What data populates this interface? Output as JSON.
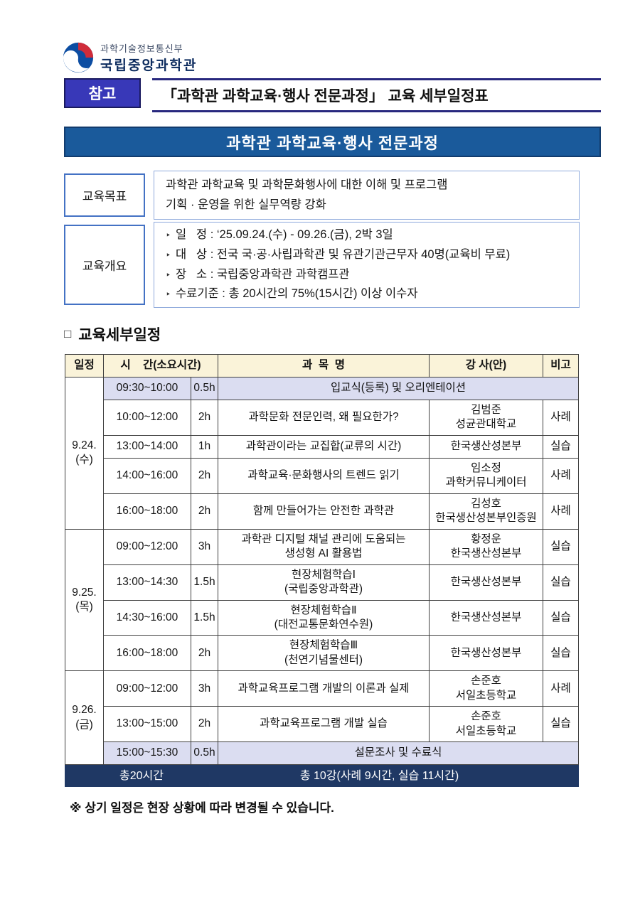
{
  "logo": {
    "ministry": "과학기술정보통신부",
    "org": "국립중앙과학관"
  },
  "header": {
    "badge": "참고",
    "title": "「과학관 과학교육·행사 전문과정」 교육 세부일정표"
  },
  "banner": {
    "title": "과학관 과학교육·행사 전문과정"
  },
  "overview": {
    "goal": {
      "label": "교육목표",
      "lines": [
        "과학관 과학교육 및 과학문화행사에 대한 이해 및 프로그램",
        "기획 · 운영을 위한 실무역량 강화"
      ]
    },
    "outline": {
      "label": "교육개요",
      "bullet": "‣",
      "items": [
        "일   정 : ‘25.09.24.(수) - 09.26.(금), 2박 3일",
        "대   상 : 전국 국·공·사립과학관 및 유관기관근무자 40명(교육비 무료)",
        "장   소 : 국립중앙과학관 과학캠프관",
        "수료기준 : 총 20시간의 75%(15시간) 이상 이수자"
      ]
    }
  },
  "section": {
    "marker": "□",
    "title": "교육세부일정"
  },
  "table": {
    "headers": [
      {
        "label": "일정",
        "colspan": 1
      },
      {
        "label": "시    간(소요시간)",
        "colspan": 2
      },
      {
        "label": "과  목  명",
        "colspan": 1
      },
      {
        "label": "강 사(안)",
        "colspan": 1
      },
      {
        "label": "비고",
        "colspan": 1
      }
    ],
    "days": [
      {
        "day_lines": [
          "9.24.",
          "(수)"
        ],
        "rows": [
          {
            "time": "09:30~10:00",
            "dur": "0.5h",
            "merged": "입교식(등록) 및 오리엔테이션"
          },
          {
            "time": "10:00~12:00",
            "dur": "2h",
            "subject": [
              "과학문화 전문인력, 왜 필요한가?"
            ],
            "lecturer": [
              "김범준",
              "성균관대학교"
            ],
            "note": "사례"
          },
          {
            "time": "13:00~14:00",
            "dur": "1h",
            "subject": [
              "과학관이라는 교집합(교류의 시간)"
            ],
            "lecturer": [
              "한국생산성본부"
            ],
            "note": "실습"
          },
          {
            "time": "14:00~16:00",
            "dur": "2h",
            "subject": [
              "과학교육·문화행사의 트렌드 읽기"
            ],
            "lecturer": [
              "임소정",
              "과학커뮤니케이터"
            ],
            "note": "사례"
          },
          {
            "time": "16:00~18:00",
            "dur": "2h",
            "subject": [
              "함께 만들어가는 안전한 과학관"
            ],
            "lecturer": [
              "김성호",
              "한국생산성본부인증원"
            ],
            "note": "사례"
          }
        ]
      },
      {
        "day_lines": [
          "9.25.",
          "(목)"
        ],
        "rows": [
          {
            "time": "09:00~12:00",
            "dur": "3h",
            "subject": [
              "과학관 디지털 채널 관리에 도움되는",
              "생성형 AI 활용법"
            ],
            "lecturer": [
              "황정운",
              "한국생산성본부"
            ],
            "note": "실습"
          },
          {
            "time": "13:00~14:30",
            "dur": "1.5h",
            "subject": [
              "현장체험학습Ⅰ",
              "(국립중앙과학관)"
            ],
            "lecturer": [
              "한국생산성본부"
            ],
            "note": "실습"
          },
          {
            "time": "14:30~16:00",
            "dur": "1.5h",
            "subject": [
              "현장체험학습Ⅱ",
              "(대전교통문화연수원)"
            ],
            "lecturer": [
              "한국생산성본부"
            ],
            "note": "실습"
          },
          {
            "time": "16:00~18:00",
            "dur": "2h",
            "subject": [
              "현장체험학습Ⅲ",
              "(천연기념물센터)"
            ],
            "lecturer": [
              "한국생산성본부"
            ],
            "note": "실습"
          }
        ]
      },
      {
        "day_lines": [
          "9.26.",
          "(금)"
        ],
        "rows": [
          {
            "time": "09:00~12:00",
            "dur": "3h",
            "subject": [
              "과학교육프로그램 개발의 이론과 실제"
            ],
            "lecturer": [
              "손준호",
              "서일초등학교"
            ],
            "note": "사례"
          },
          {
            "time": "13:00~15:00",
            "dur": "2h",
            "subject": [
              "과학교육프로그램 개발 실습"
            ],
            "lecturer": [
              "손준호",
              "서일초등학교"
            ],
            "note": "실습"
          },
          {
            "time": "15:00~15:30",
            "dur": "0.5h",
            "merged": "설문조사 및 수료식"
          }
        ]
      }
    ],
    "total_left": "총20시간",
    "total_right": "총 10강(사례 9시간, 실습 11시간)"
  },
  "note": {
    "text": "※ 상기 일정은 현장 상황에 따라 변경될 수 있습니다."
  },
  "colors": {
    "badge_bg": "#3838b8",
    "banner_bg": "#1a5a9b",
    "header_row_bg": "#faf3d9",
    "special_row_bg": "#dbddf1",
    "total_row_bg": "#1f3864",
    "label_border": "#4472c4",
    "emblem_blue": "#0c4da2",
    "emblem_red": "#d02c3a"
  }
}
